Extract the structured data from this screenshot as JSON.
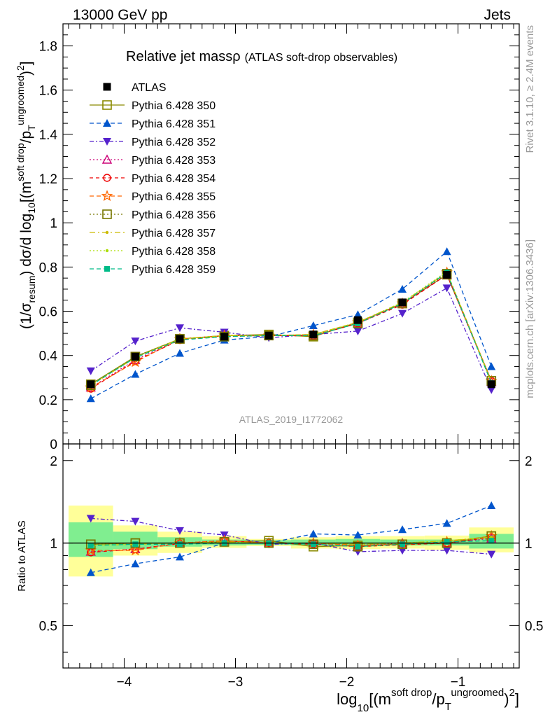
{
  "header": {
    "left": "13000 GeV pp",
    "right": "Jets"
  },
  "side_labels": {
    "rivet": "Rivet 3.1.10, ≥ 2.4M events",
    "mcplots": "mcplots.cern.ch [arXiv:1306.3436]"
  },
  "chart_data": [
    {
      "type": "line",
      "panel": "main",
      "title_main": "Relative jet massρ",
      "title_sub": "(ATLAS soft-drop observables)",
      "analysis_label": "ATLAS_2019_I1772062",
      "ylabel": "(1/σresum) dσ/d log10[(m soft drop/pT ungroomed)2]",
      "ylim": [
        0,
        1.9
      ],
      "yticks": [
        "0",
        "0.2",
        "0.4",
        "0.6",
        "0.8",
        "1",
        "1.2",
        "1.4",
        "1.6",
        "1.8"
      ],
      "ytick_values": [
        0,
        0.2,
        0.4,
        0.6,
        0.8,
        1.0,
        1.2,
        1.4,
        1.6,
        1.8
      ],
      "x": [
        -4.3,
        -3.9,
        -3.5,
        -3.1,
        -2.7,
        -2.3,
        -1.9,
        -1.5,
        -1.1,
        -0.7
      ],
      "series": [
        {
          "name": "ATLAS",
          "color": "#000000",
          "marker": "filled-square",
          "dash": "none",
          "values": [
            0.27,
            0.395,
            0.475,
            0.485,
            0.49,
            0.495,
            0.56,
            0.64,
            0.765,
            0.27
          ]
        },
        {
          "name": "Pythia 6.428 350",
          "color": "#8a8a00",
          "marker": "open-square",
          "dash": "solid",
          "values": [
            0.27,
            0.395,
            0.475,
            0.49,
            0.495,
            0.485,
            0.55,
            0.635,
            0.765,
            0.285
          ]
        },
        {
          "name": "Pythia 6.428 351",
          "color": "#0055cc",
          "marker": "filled-triangle-up",
          "dash": "6,4",
          "values": [
            0.205,
            0.315,
            0.41,
            0.47,
            0.485,
            0.535,
            0.585,
            0.7,
            0.87,
            0.35
          ]
        },
        {
          "name": "Pythia 6.428 352",
          "color": "#5522cc",
          "marker": "filled-triangle-down",
          "dash": "6,3,2,3",
          "values": [
            0.33,
            0.465,
            0.525,
            0.505,
            0.48,
            0.495,
            0.51,
            0.59,
            0.705,
            0.245
          ]
        },
        {
          "name": "Pythia 6.428 353",
          "color": "#cc0077",
          "marker": "open-triangle-up",
          "dash": "2,3",
          "values": [
            0.255,
            0.38,
            0.475,
            0.49,
            0.49,
            0.49,
            0.545,
            0.635,
            0.765,
            0.28
          ]
        },
        {
          "name": "Pythia 6.428 354",
          "color": "#ee0000",
          "marker": "open-circle",
          "dash": "5,4",
          "values": [
            0.25,
            0.375,
            0.47,
            0.49,
            0.49,
            0.49,
            0.545,
            0.63,
            0.765,
            0.285
          ]
        },
        {
          "name": "Pythia 6.428 355",
          "color": "#ff6600",
          "marker": "open-star",
          "dash": "6,4",
          "values": [
            0.255,
            0.37,
            0.475,
            0.49,
            0.49,
            0.495,
            0.55,
            0.635,
            0.775,
            0.285
          ]
        },
        {
          "name": "Pythia 6.428 356",
          "color": "#777700",
          "marker": "open-square",
          "dash": "2,3",
          "values": [
            0.265,
            0.395,
            0.475,
            0.485,
            0.49,
            0.49,
            0.545,
            0.635,
            0.77,
            0.285
          ]
        },
        {
          "name": "Pythia 6.428 357",
          "color": "#ccbb00",
          "marker": "small-dot",
          "dash": "8,4,2,4",
          "values": [
            0.265,
            0.39,
            0.475,
            0.49,
            0.49,
            0.495,
            0.55,
            0.64,
            0.775,
            0.28
          ]
        },
        {
          "name": "Pythia 6.428 358",
          "color": "#aadd00",
          "marker": "small-dot",
          "dash": "2,3",
          "values": [
            0.265,
            0.39,
            0.475,
            0.49,
            0.49,
            0.495,
            0.55,
            0.64,
            0.78,
            0.28
          ]
        },
        {
          "name": "Pythia 6.428 359",
          "color": "#00bb88",
          "marker": "filled-square-small",
          "dash": "6,4",
          "values": [
            0.265,
            0.39,
            0.47,
            0.485,
            0.49,
            0.49,
            0.545,
            0.635,
            0.775,
            0.275
          ]
        }
      ]
    },
    {
      "type": "line",
      "panel": "ratio",
      "ylabel": "Ratio to ATLAS",
      "ylim": [
        0.35,
        2.3
      ],
      "log_y": true,
      "yticks": [
        "0.5",
        "1",
        "2"
      ],
      "ytick_values": [
        0.5,
        1,
        2
      ],
      "xlabel": "log10[(m soft drop/pT ungroomed)2]",
      "xlim": [
        -4.55,
        -0.45
      ],
      "xticks": [
        "−4",
        "−3",
        "−2",
        "−1"
      ],
      "xtick_values": [
        -4,
        -3,
        -2,
        -1
      ],
      "bands": {
        "edges": [
          -4.5,
          -4.1,
          -3.7,
          -3.3,
          -2.9,
          -2.5,
          -2.1,
          -1.7,
          -1.3,
          -0.9,
          -0.5
        ],
        "inner_lo": [
          0.89,
          0.95,
          0.97,
          0.98,
          0.985,
          0.98,
          0.98,
          0.98,
          0.98,
          0.955
        ],
        "inner_hi": [
          1.19,
          1.1,
          1.05,
          1.03,
          1.025,
          1.03,
          1.035,
          1.03,
          1.03,
          1.08
        ],
        "outer_lo": [
          0.755,
          0.9,
          0.92,
          0.96,
          0.975,
          0.955,
          0.95,
          0.955,
          0.945,
          0.925
        ],
        "outer_hi": [
          1.37,
          1.16,
          1.1,
          1.06,
          1.035,
          1.05,
          1.06,
          1.06,
          1.065,
          1.14
        ],
        "inner_color": "#80ee90",
        "outer_color": "#ffff99"
      },
      "series": [
        {
          "name": "Pythia 6.428 350",
          "values": [
            0.99,
            1.0,
            1.0,
            1.01,
            1.02,
            0.97,
            0.98,
            0.99,
            1.0,
            1.06
          ]
        },
        {
          "name": "Pythia 6.428 351",
          "values": [
            0.78,
            0.84,
            0.89,
            1.0,
            1.0,
            1.08,
            1.07,
            1.12,
            1.18,
            1.37
          ]
        },
        {
          "name": "Pythia 6.428 352",
          "values": [
            1.23,
            1.2,
            1.11,
            1.07,
            0.99,
            1.0,
            0.93,
            0.94,
            0.94,
            0.91
          ]
        },
        {
          "name": "Pythia 6.428 353",
          "values": [
            0.93,
            0.95,
            1.0,
            1.02,
            1.0,
            1.0,
            0.98,
            1.0,
            1.0,
            1.04
          ]
        },
        {
          "name": "Pythia 6.428 354",
          "values": [
            0.925,
            0.95,
            0.995,
            1.02,
            1.0,
            0.99,
            0.97,
            0.985,
            1.0,
            1.05
          ]
        },
        {
          "name": "Pythia 6.428 355",
          "values": [
            0.94,
            0.94,
            1.0,
            1.02,
            1.0,
            1.0,
            0.98,
            0.99,
            1.01,
            1.06
          ]
        },
        {
          "name": "Pythia 6.428 356",
          "values": [
            0.99,
            1.0,
            1.0,
            1.01,
            1.0,
            0.99,
            0.97,
            0.99,
            1.0,
            1.06
          ]
        },
        {
          "name": "Pythia 6.428 357",
          "values": [
            0.98,
            0.99,
            1.0,
            1.01,
            1.0,
            1.0,
            0.99,
            1.0,
            1.02,
            1.05
          ]
        },
        {
          "name": "Pythia 6.428 358",
          "values": [
            0.98,
            0.99,
            1.0,
            1.01,
            1.0,
            1.0,
            0.99,
            1.0,
            1.02,
            1.05
          ]
        },
        {
          "name": "Pythia 6.428 359",
          "values": [
            0.98,
            0.99,
            0.99,
            1.0,
            1.0,
            0.99,
            0.97,
            0.99,
            1.01,
            1.02
          ]
        }
      ]
    }
  ]
}
